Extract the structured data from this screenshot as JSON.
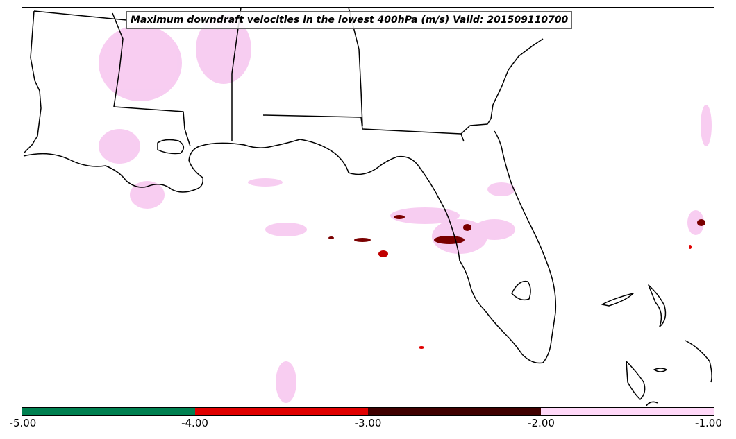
{
  "title": "Maximum downdraft velocities in the lowest 400hPa (m/s) Valid: 201509110700",
  "colorbar": {
    "segments": [
      {
        "from": -5.0,
        "to": -4.0,
        "color": "#008050"
      },
      {
        "from": -4.0,
        "to": -3.0,
        "color": "#e00000"
      },
      {
        "from": -3.0,
        "to": -2.0,
        "color": "#400000"
      },
      {
        "from": -2.0,
        "to": -1.0,
        "color": "#ffd8f8"
      }
    ],
    "ticks": [
      "-5.00",
      "-4.00",
      "-3.00",
      "-2.00",
      "-1.00"
    ]
  },
  "colors": {
    "coastline": "#000000",
    "light_field": "#f7c8f0",
    "strong_core": "#7a0000",
    "moderate_core": "#e00000"
  }
}
